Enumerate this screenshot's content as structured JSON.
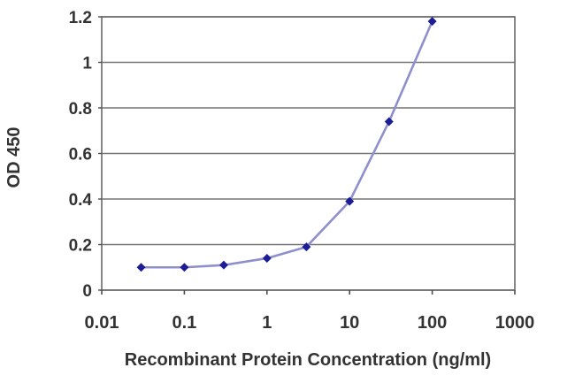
{
  "chart_data": {
    "type": "line",
    "x_scale": "log",
    "x": [
      0.03,
      0.1,
      0.3,
      1,
      3,
      10,
      30,
      100
    ],
    "y": [
      0.1,
      0.1,
      0.11,
      0.14,
      0.19,
      0.39,
      0.74,
      1.18
    ],
    "title": "",
    "xlabel": "Recombinant Protein Concentration (ng/ml)",
    "ylabel": "OD 450",
    "xlim": [
      0.01,
      1000
    ],
    "ylim": [
      0,
      1.2
    ],
    "xticks": [
      "0.01",
      "0.1",
      "1",
      "10",
      "100",
      "1000"
    ],
    "xtick_values": [
      0.01,
      0.1,
      1,
      10,
      100,
      1000
    ],
    "yticks": [
      "0",
      "0.2",
      "0.4",
      "0.6",
      "0.8",
      "1",
      "1.2"
    ],
    "ytick_values": [
      0,
      0.2,
      0.4,
      0.6,
      0.8,
      1,
      1.2
    ],
    "grid": "horizontal",
    "legend": "none",
    "marker": "diamond",
    "colors": {
      "line": "#8f8fce",
      "marker": "#1c1c96",
      "grid": "#757575",
      "border": "#6b6b6b",
      "tick": "#4d4d4d",
      "text": "#333333",
      "background": "#ffffff"
    }
  }
}
